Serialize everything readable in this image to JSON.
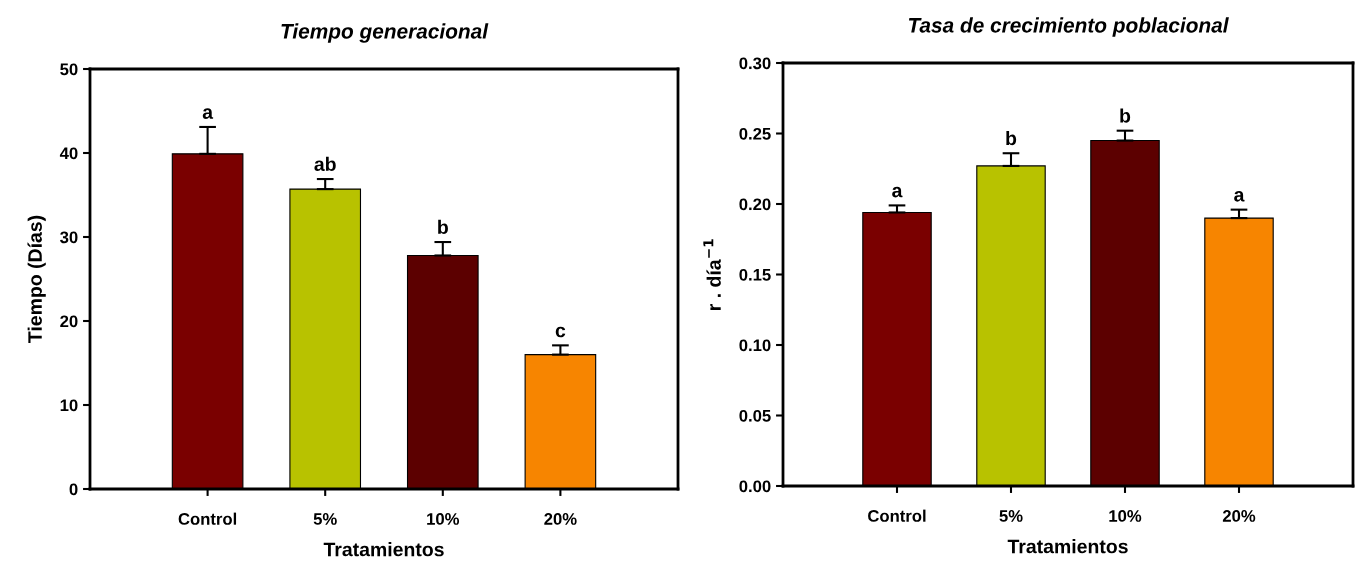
{
  "chart_data": [
    {
      "type": "bar",
      "title": "Tiempo generacional",
      "xlabel": "Tratamientos",
      "ylabel": "Tiempo (Días)",
      "categories": [
        "Control",
        "5%",
        "10%",
        "20%"
      ],
      "values": [
        39.9,
        35.7,
        27.8,
        16.0
      ],
      "errors": [
        3.2,
        1.2,
        1.6,
        1.1
      ],
      "colors": [
        "#7a0000",
        "#b8c200",
        "#5c0000",
        "#f78500"
      ],
      "ylim": [
        0,
        50
      ],
      "yticks": [
        0,
        10,
        20,
        30,
        40,
        50
      ],
      "grid": false,
      "annotations": [
        {
          "text": "a",
          "x": "Control",
          "y": 43.1
        },
        {
          "text": "ab",
          "x": "5%",
          "y": 36.9
        },
        {
          "text": "b",
          "x": "10%",
          "y": 29.4
        },
        {
          "text": "c",
          "x": "20%",
          "y": 17.1
        }
      ]
    },
    {
      "type": "bar",
      "title": "Tasa de crecimiento poblacional",
      "xlabel": "Tratamientos",
      "ylabel": "r . día$^{−1}$",
      "categories": [
        "Control",
        "5%",
        "10%",
        "20%"
      ],
      "values": [
        0.194,
        0.227,
        0.245,
        0.19
      ],
      "errors": [
        0.005,
        0.009,
        0.007,
        0.006
      ],
      "colors": [
        "#7a0000",
        "#b8c200",
        "#5c0000",
        "#f78500"
      ],
      "ylim": [
        0,
        0.3
      ],
      "yticks": [
        {
          "value": 0,
          "label": "0.00"
        },
        {
          "value": 0.05,
          "label": "0.05"
        },
        {
          "value": 0.1,
          "label": "0.10"
        },
        {
          "value": 0.15,
          "label": "0.15"
        },
        {
          "value": 0.2,
          "label": "0.20"
        },
        {
          "value": 0.25,
          "label": "0.25"
        },
        {
          "value": 0.3,
          "label": "0.30"
        }
      ],
      "grid": false,
      "annotations": [
        {
          "text": "a",
          "x": "Control",
          "y": 0.199
        },
        {
          "text": "b",
          "x": "5%",
          "y": 0.236
        },
        {
          "text": "b",
          "x": "10%",
          "y": 0.252
        },
        {
          "text": "a",
          "x": "20%",
          "y": 0.196
        }
      ]
    }
  ]
}
